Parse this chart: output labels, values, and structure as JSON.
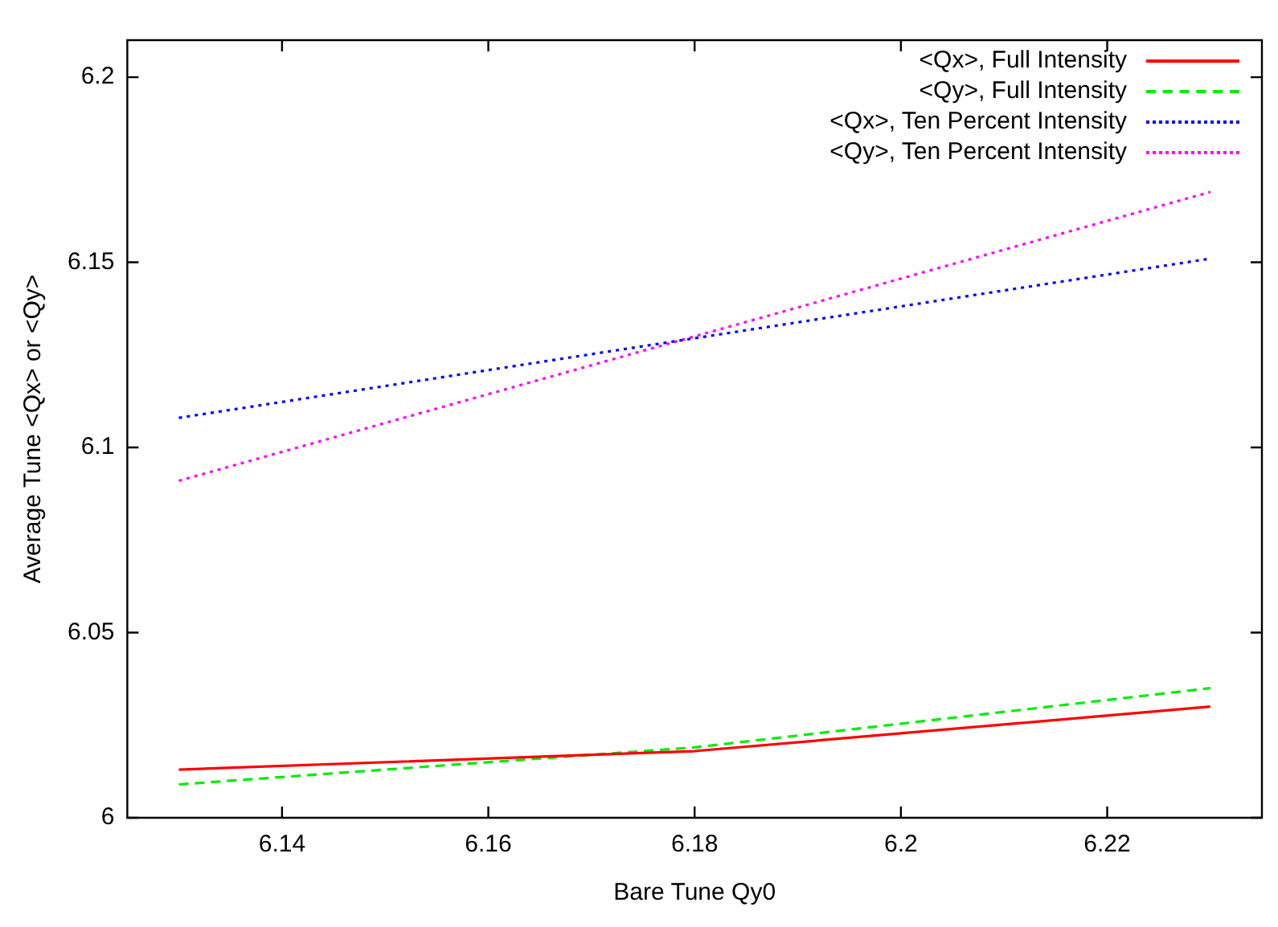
{
  "chart_data": {
    "type": "line",
    "xlabel": "Bare Tune Qy0",
    "ylabel": "Average Tune <Qx> or <Qy>",
    "x": [
      6.13,
      6.18,
      6.23
    ],
    "series": [
      {
        "name": "<Qx>, Full Intensity",
        "color": "#ff0000",
        "line_style": "solid",
        "values": [
          6.013,
          6.018,
          6.03
        ]
      },
      {
        "name": "<Qy>, Full Intensity",
        "color": "#00ee00",
        "line_style": "dashed",
        "values": [
          6.009,
          6.019,
          6.035
        ]
      },
      {
        "name": "<Qx>, Ten Percent Intensity",
        "color": "#0000ff",
        "line_style": "dotted",
        "values": [
          6.108,
          6.1295,
          6.151
        ]
      },
      {
        "name": "<Qy>, Ten Percent Intensity",
        "color": "#ff00ff",
        "line_style": "dotted",
        "values": [
          6.091,
          6.13,
          6.169
        ]
      }
    ],
    "xlim": [
      6.125,
      6.235
    ],
    "xticks": [
      6.14,
      6.16,
      6.18,
      6.2,
      6.22
    ],
    "ylim": [
      6,
      6.21
    ],
    "yticks": [
      6,
      6.05,
      6.1,
      6.15,
      6.2
    ],
    "grid": false,
    "legend": "top right",
    "marker": "none"
  }
}
